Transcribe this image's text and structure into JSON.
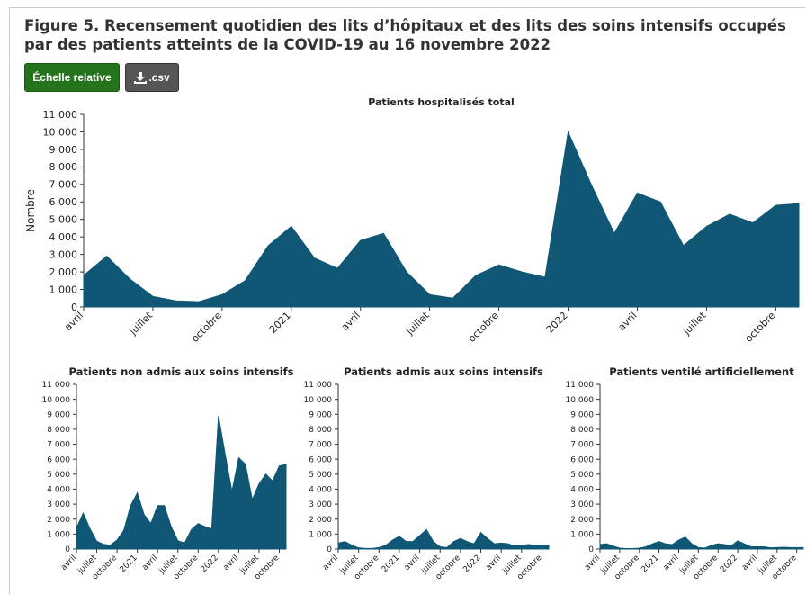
{
  "header": {
    "title": "Figure 5. Recensement quotidien des lits d’hôpitaux et des lits des soins intensifs occupés par des patients atteints de la COVID-19 au 16 novembre 2022",
    "buttons": [
      "Échelle relative",
      ".csv"
    ]
  },
  "chart_data": [
    {
      "type": "area",
      "title": "Patients hospitalisés total",
      "ylabel": "Nombre",
      "color": "#0f5775",
      "x": [
        "2020-04",
        "2020-05",
        "2020-06",
        "2020-07",
        "2020-08",
        "2020-09",
        "2020-10",
        "2020-11",
        "2020-12",
        "2021-01",
        "2021-02",
        "2021-03",
        "2021-04",
        "2021-05",
        "2021-06",
        "2021-07",
        "2021-08",
        "2021-09",
        "2021-10",
        "2021-11",
        "2021-12",
        "2022-01",
        "2022-02",
        "2022-03",
        "2022-04",
        "2022-05",
        "2022-06",
        "2022-07",
        "2022-08",
        "2022-09",
        "2022-10",
        "2022-11"
      ],
      "values": [
        1800,
        2900,
        1600,
        600,
        350,
        300,
        700,
        1500,
        3500,
        4600,
        2800,
        2200,
        3800,
        4200,
        2000,
        700,
        500,
        1800,
        2400,
        2000,
        1700,
        10000,
        7000,
        4200,
        6500,
        6000,
        3500,
        4600,
        5300,
        4800,
        5800,
        5900
      ],
      "xlim": [
        "2020-04",
        "2022-11"
      ],
      "xticks": [
        {
          "value": "2020-04",
          "label": "avril"
        },
        {
          "value": "2020-07",
          "label": "juillet"
        },
        {
          "value": "2020-10",
          "label": "octobre"
        },
        {
          "value": "2021-01",
          "label": "2021"
        },
        {
          "value": "2021-04",
          "label": "avril"
        },
        {
          "value": "2021-07",
          "label": "juillet"
        },
        {
          "value": "2021-10",
          "label": "octobre"
        },
        {
          "value": "2022-01",
          "label": "2022"
        },
        {
          "value": "2022-04",
          "label": "avril"
        },
        {
          "value": "2022-07",
          "label": "juillet"
        },
        {
          "value": "2022-10",
          "label": "octobre"
        }
      ],
      "ylim": [
        0,
        11000
      ],
      "yticks": [
        0,
        {
          "value": 1000,
          "label": "1 000"
        },
        {
          "value": 2000,
          "label": "2 000"
        },
        {
          "value": 3000,
          "label": "3 000"
        },
        {
          "value": 4000,
          "label": "4 000"
        },
        {
          "value": 5000,
          "label": "5 000"
        },
        {
          "value": 6000,
          "label": "6 000"
        },
        {
          "value": 7000,
          "label": "7 000"
        },
        {
          "value": 8000,
          "label": "8 000"
        },
        {
          "value": 9000,
          "label": "9 000"
        },
        {
          "value": 10000,
          "label": "10 000"
        },
        {
          "value": 11000,
          "label": "11 000"
        }
      ]
    },
    {
      "type": "area",
      "title": "Patients non admis aux soins intensifs",
      "color": "#0f5775",
      "x": [
        "2020-04",
        "2020-05",
        "2020-06",
        "2020-07",
        "2020-08",
        "2020-09",
        "2020-10",
        "2020-11",
        "2020-12",
        "2021-01",
        "2021-02",
        "2021-03",
        "2021-04",
        "2021-05",
        "2021-06",
        "2021-07",
        "2021-08",
        "2021-09",
        "2021-10",
        "2021-11",
        "2021-12",
        "2022-01",
        "2022-02",
        "2022-03",
        "2022-04",
        "2022-05",
        "2022-06",
        "2022-07",
        "2022-08",
        "2022-09",
        "2022-10",
        "2022-11"
      ],
      "values": [
        1400,
        2400,
        1350,
        520,
        310,
        260,
        600,
        1250,
        2900,
        3750,
        2300,
        1700,
        2900,
        2900,
        1500,
        550,
        400,
        1300,
        1700,
        1500,
        1350,
        8900,
        6300,
        3850,
        6100,
        5650,
        3300,
        4350,
        5000,
        4550,
        5550,
        5650
      ],
      "xlim": [
        "2020-04",
        "2022-11"
      ],
      "xticks": [
        {
          "value": "2020-04",
          "label": "avril"
        },
        {
          "value": "2020-07",
          "label": "juillet"
        },
        {
          "value": "2020-10",
          "label": "octobre"
        },
        {
          "value": "2021-01",
          "label": "2021"
        },
        {
          "value": "2021-04",
          "label": "avril"
        },
        {
          "value": "2021-07",
          "label": "juillet"
        },
        {
          "value": "2021-10",
          "label": "octobre"
        },
        {
          "value": "2022-01",
          "label": "2022"
        },
        {
          "value": "2022-04",
          "label": "avril"
        },
        {
          "value": "2022-07",
          "label": "juillet"
        },
        {
          "value": "2022-10",
          "label": "octobre"
        }
      ],
      "ylim": [
        0,
        11000
      ],
      "yticks": [
        0,
        {
          "value": 1000,
          "label": "1 000"
        },
        {
          "value": 2000,
          "label": "2 000"
        },
        {
          "value": 3000,
          "label": "3 000"
        },
        {
          "value": 4000,
          "label": "4 000"
        },
        {
          "value": 5000,
          "label": "5 000"
        },
        {
          "value": 6000,
          "label": "6 000"
        },
        {
          "value": 7000,
          "label": "7 000"
        },
        {
          "value": 8000,
          "label": "8 000"
        },
        {
          "value": 9000,
          "label": "9 000"
        },
        {
          "value": 10000,
          "label": "10 000"
        },
        {
          "value": 11000,
          "label": "11 000"
        }
      ]
    },
    {
      "type": "area",
      "title": "Patients admis aux soins intensifs",
      "color": "#0f5775",
      "x": [
        "2020-04",
        "2020-05",
        "2020-06",
        "2020-07",
        "2020-08",
        "2020-09",
        "2020-10",
        "2020-11",
        "2020-12",
        "2021-01",
        "2021-02",
        "2021-03",
        "2021-04",
        "2021-05",
        "2021-06",
        "2021-07",
        "2021-08",
        "2021-09",
        "2021-10",
        "2021-11",
        "2021-12",
        "2022-01",
        "2022-02",
        "2022-03",
        "2022-04",
        "2022-05",
        "2022-06",
        "2022-07",
        "2022-08",
        "2022-09",
        "2022-10",
        "2022-11"
      ],
      "values": [
        400,
        500,
        250,
        80,
        40,
        40,
        100,
        250,
        600,
        850,
        500,
        500,
        900,
        1300,
        500,
        150,
        100,
        500,
        700,
        500,
        350,
        1100,
        700,
        350,
        400,
        350,
        200,
        250,
        300,
        250,
        250,
        250
      ],
      "xlim": [
        "2020-04",
        "2022-11"
      ],
      "xticks": [
        {
          "value": "2020-04",
          "label": "avril"
        },
        {
          "value": "2020-07",
          "label": "juillet"
        },
        {
          "value": "2020-10",
          "label": "octobre"
        },
        {
          "value": "2021-01",
          "label": "2021"
        },
        {
          "value": "2021-04",
          "label": "avril"
        },
        {
          "value": "2021-07",
          "label": "juillet"
        },
        {
          "value": "2021-10",
          "label": "octobre"
        },
        {
          "value": "2022-01",
          "label": "2022"
        },
        {
          "value": "2022-04",
          "label": "avril"
        },
        {
          "value": "2022-07",
          "label": "juillet"
        },
        {
          "value": "2022-10",
          "label": "octobre"
        }
      ],
      "ylim": [
        0,
        11000
      ],
      "yticks": [
        0,
        {
          "value": 1000,
          "label": "1 000"
        },
        {
          "value": 2000,
          "label": "2 000"
        },
        {
          "value": 3000,
          "label": "3 000"
        },
        {
          "value": 4000,
          "label": "4 000"
        },
        {
          "value": 5000,
          "label": "5 000"
        },
        {
          "value": 6000,
          "label": "6 000"
        },
        {
          "value": 7000,
          "label": "7 000"
        },
        {
          "value": 8000,
          "label": "8 000"
        },
        {
          "value": 9000,
          "label": "9 000"
        },
        {
          "value": 10000,
          "label": "10 000"
        },
        {
          "value": 11000,
          "label": "11 000"
        }
      ]
    },
    {
      "type": "area",
      "title": "Patients ventilé artificiellement",
      "color": "#0f5775",
      "x": [
        "2020-04",
        "2020-05",
        "2020-06",
        "2020-07",
        "2020-08",
        "2020-09",
        "2020-10",
        "2020-11",
        "2020-12",
        "2021-01",
        "2021-02",
        "2021-03",
        "2021-04",
        "2021-05",
        "2021-06",
        "2021-07",
        "2021-08",
        "2021-09",
        "2021-10",
        "2021-11",
        "2021-12",
        "2022-01",
        "2022-02",
        "2022-03",
        "2022-04",
        "2022-05",
        "2022-06",
        "2022-07",
        "2022-08",
        "2022-09",
        "2022-10",
        "2022-11"
      ],
      "values": [
        300,
        350,
        200,
        60,
        30,
        30,
        60,
        150,
        350,
        500,
        350,
        300,
        600,
        800,
        350,
        100,
        60,
        250,
        350,
        300,
        200,
        550,
        350,
        150,
        150,
        150,
        80,
        100,
        120,
        100,
        100,
        100
      ],
      "xlim": [
        "2020-04",
        "2022-11"
      ],
      "xticks": [
        {
          "value": "2020-04",
          "label": "avril"
        },
        {
          "value": "2020-07",
          "label": "juillet"
        },
        {
          "value": "2020-10",
          "label": "octobre"
        },
        {
          "value": "2021-01",
          "label": "2021"
        },
        {
          "value": "2021-04",
          "label": "avril"
        },
        {
          "value": "2021-07",
          "label": "juillet"
        },
        {
          "value": "2021-10",
          "label": "octobre"
        },
        {
          "value": "2022-01",
          "label": "2022"
        },
        {
          "value": "2022-04",
          "label": "avril"
        },
        {
          "value": "2022-07",
          "label": "juillet"
        },
        {
          "value": "2022-10",
          "label": "octobre"
        }
      ],
      "ylim": [
        0,
        11000
      ],
      "yticks": [
        0,
        {
          "value": 1000,
          "label": "1 000"
        },
        {
          "value": 2000,
          "label": "2 000"
        },
        {
          "value": 3000,
          "label": "3 000"
        },
        {
          "value": 4000,
          "label": "4 000"
        },
        {
          "value": 5000,
          "label": "5 000"
        },
        {
          "value": 6000,
          "label": "6 000"
        },
        {
          "value": 7000,
          "label": "7 000"
        },
        {
          "value": 8000,
          "label": "8 000"
        },
        {
          "value": 9000,
          "label": "9 000"
        },
        {
          "value": 10000,
          "label": "10 000"
        },
        {
          "value": 11000,
          "label": "11 000"
        }
      ]
    }
  ]
}
